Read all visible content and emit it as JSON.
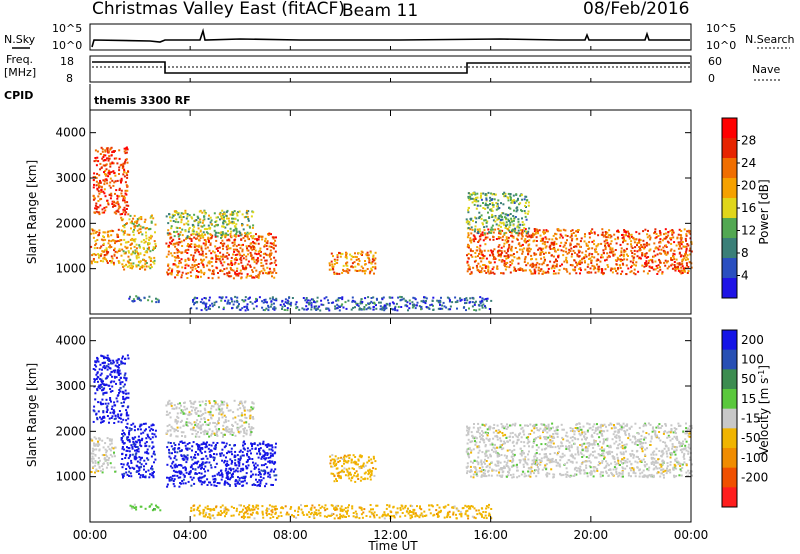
{
  "header": {
    "title": "Christmas Valley East (fitACF)",
    "beam": "Beam 11",
    "date": "08/Feb/2016"
  },
  "summary_panel": {
    "nsky_label": "N.Sky",
    "nsearch_label": "N.Search",
    "noise_ticks": [
      "10^5",
      "10^0"
    ],
    "freq_label_1": "Freq.",
    "freq_label_2": "[MHz]",
    "freq_ticks": [
      "18",
      "8"
    ],
    "nave_ticks": [
      "60",
      "0"
    ],
    "nave_label": "Nave",
    "cpid_label": "CPID",
    "cpid_value": "themis 3300 RF"
  },
  "colors": {
    "power_scale": [
      "#1f14e6",
      "#2a4fc0",
      "#3a7f78",
      "#52a852",
      "#e0d61a",
      "#f5a100",
      "#f06e00",
      "#e62400",
      "#ff0000"
    ],
    "velocity_scale": [
      "#1414e6",
      "#2850b4",
      "#3c8c50",
      "#5ac83c",
      "#c8c8c8",
      "#f0b400",
      "#f08c00",
      "#f05000",
      "#ff1e1e"
    ]
  },
  "chart_data": [
    {
      "type": "heatmap",
      "name": "power",
      "ylabel": "Slant Range [km]",
      "xlabel": "Time UT",
      "x_ticks": [
        "00:00",
        "04:00",
        "08:00",
        "12:00",
        "16:00",
        "20:00",
        "00:00"
      ],
      "y_ticks": [
        1000,
        2000,
        3000,
        4000
      ],
      "ylim": [
        0,
        4500
      ],
      "xlim_hours": [
        0,
        24
      ],
      "colorbar_label": "Power [dB]",
      "colorbar_ticks": [
        4,
        8,
        12,
        16,
        20,
        24,
        28
      ],
      "colorbar_range": [
        0,
        32
      ],
      "regions": [
        {
          "t0": 0.0,
          "t1": 1.2,
          "r0": 1100,
          "r1": 1900,
          "value": 22
        },
        {
          "t0": 0.1,
          "t1": 1.5,
          "r0": 2200,
          "r1": 3700,
          "value": 26
        },
        {
          "t0": 1.2,
          "t1": 2.6,
          "r0": 1000,
          "r1": 2200,
          "value": 18
        },
        {
          "t0": 3.0,
          "t1": 7.4,
          "r0": 800,
          "r1": 1800,
          "value": 24
        },
        {
          "t0": 3.0,
          "t1": 6.5,
          "r0": 1700,
          "r1": 2300,
          "value": 14
        },
        {
          "t0": 9.5,
          "t1": 11.4,
          "r0": 900,
          "r1": 1400,
          "value": 22
        },
        {
          "t0": 15.0,
          "t1": 24.0,
          "r0": 900,
          "r1": 1900,
          "value": 24
        },
        {
          "t0": 15.0,
          "t1": 17.5,
          "r0": 1800,
          "r1": 2700,
          "value": 12
        },
        {
          "t0": 1.5,
          "t1": 2.8,
          "r0": 280,
          "r1": 420,
          "value": 8
        },
        {
          "t0": 4.0,
          "t1": 16.0,
          "r0": 100,
          "r1": 400,
          "value": 6
        }
      ]
    },
    {
      "type": "heatmap",
      "name": "velocity",
      "ylabel": "Slant Range [km]",
      "xlabel": "Time UT",
      "x_ticks": [
        "00:00",
        "04:00",
        "08:00",
        "12:00",
        "16:00",
        "20:00",
        "00:00"
      ],
      "y_ticks": [
        1000,
        2000,
        3000,
        4000
      ],
      "ylim": [
        0,
        4500
      ],
      "xlim_hours": [
        0,
        24
      ],
      "colorbar_label": "Velocity [m s^-1]",
      "colorbar_ticks": [
        "200",
        "100",
        "50",
        "15",
        "-15",
        "-50",
        "-100",
        "-200"
      ],
      "regions": [
        {
          "t0": 0.0,
          "t1": 1.0,
          "r0": 1100,
          "r1": 1900,
          "value": "-15"
        },
        {
          "t0": 0.1,
          "t1": 1.5,
          "r0": 2200,
          "r1": 3700,
          "value": "200"
        },
        {
          "t0": 1.2,
          "t1": 2.6,
          "r0": 1000,
          "r1": 2200,
          "value": "200"
        },
        {
          "t0": 3.0,
          "t1": 7.4,
          "r0": 800,
          "r1": 1800,
          "value": "200"
        },
        {
          "t0": 3.0,
          "t1": 6.5,
          "r0": 1900,
          "r1": 2700,
          "value": "-15"
        },
        {
          "t0": 9.5,
          "t1": 11.4,
          "r0": 900,
          "r1": 1500,
          "value": "-50"
        },
        {
          "t0": 15.0,
          "t1": 24.0,
          "r0": 1000,
          "r1": 2200,
          "value": "-15"
        },
        {
          "t0": 1.5,
          "t1": 2.8,
          "r0": 280,
          "r1": 420,
          "value": "15"
        },
        {
          "t0": 4.0,
          "t1": 16.0,
          "r0": 100,
          "r1": 400,
          "value": "-50"
        }
      ]
    }
  ]
}
